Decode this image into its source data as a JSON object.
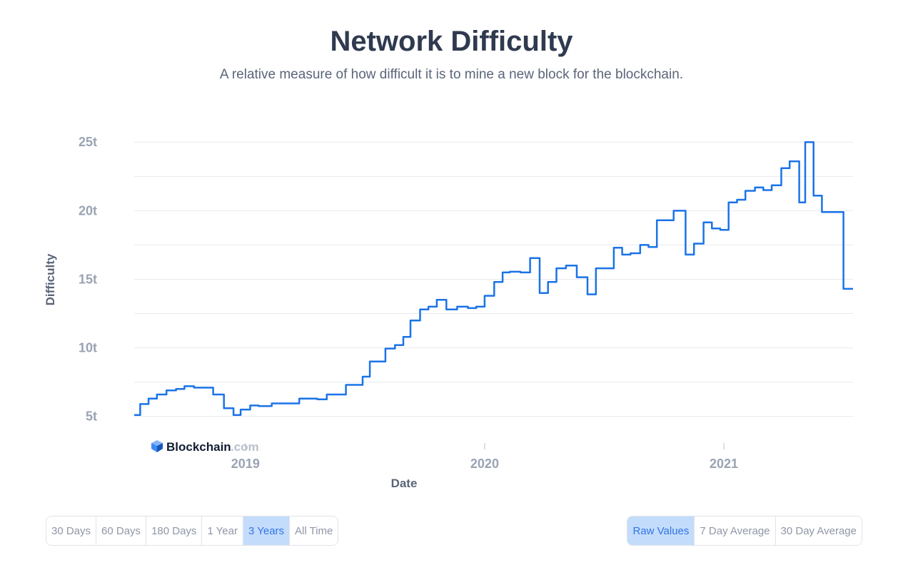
{
  "header": {
    "title": "Network Difficulty",
    "subtitle": "A relative measure of how difficult it is to mine a new block for the blockchain."
  },
  "brand": {
    "name": "Blockchain",
    "suffix": ".com"
  },
  "range_buttons": [
    {
      "label": "30 Days",
      "active": false
    },
    {
      "label": "60 Days",
      "active": false
    },
    {
      "label": "180 Days",
      "active": false
    },
    {
      "label": "1 Year",
      "active": false
    },
    {
      "label": "3 Years",
      "active": true
    },
    {
      "label": "All Time",
      "active": false
    }
  ],
  "average_buttons": [
    {
      "label": "Raw Values",
      "active": true
    },
    {
      "label": "7 Day Average",
      "active": false
    },
    {
      "label": "30 Day Average",
      "active": false
    }
  ],
  "colors": {
    "line": "#1a73e8",
    "grid": "#e6e9ee",
    "accent": "#2f76e6"
  },
  "chart_data": {
    "type": "line",
    "title": "Network Difficulty",
    "xlabel": "Date",
    "ylabel": "Difficulty",
    "x_ticks": [
      {
        "label": "2019",
        "value": 2019.0
      },
      {
        "label": "2020",
        "value": 2020.0
      },
      {
        "label": "2021",
        "value": 2021.0
      }
    ],
    "y_ticks": [
      {
        "label": "5t",
        "value": 5
      },
      {
        "label": "10t",
        "value": 10
      },
      {
        "label": "15t",
        "value": 15
      },
      {
        "label": "20t",
        "value": 20
      },
      {
        "label": "25t",
        "value": 25
      }
    ],
    "xlim": [
      2018.535,
      2021.54
    ],
    "ylim": [
      4.05,
      26.0
    ],
    "grid": true,
    "series": [
      {
        "values": [
          [
            2018.535,
            5.1
          ],
          [
            2018.56,
            5.9
          ],
          [
            2018.595,
            6.3
          ],
          [
            2018.63,
            6.6
          ],
          [
            2018.67,
            6.9
          ],
          [
            2018.71,
            7.0
          ],
          [
            2018.745,
            7.2
          ],
          [
            2018.785,
            7.1
          ],
          [
            2018.865,
            6.6
          ],
          [
            2018.91,
            5.6
          ],
          [
            2018.95,
            5.1
          ],
          [
            2018.98,
            5.5
          ],
          [
            2019.02,
            5.8
          ],
          [
            2019.055,
            5.75
          ],
          [
            2019.11,
            5.95
          ],
          [
            2019.225,
            6.3
          ],
          [
            2019.3,
            6.25
          ],
          [
            2019.34,
            6.6
          ],
          [
            2019.42,
            7.3
          ],
          [
            2019.49,
            7.9
          ],
          [
            2019.52,
            9.0
          ],
          [
            2019.585,
            9.95
          ],
          [
            2019.625,
            10.2
          ],
          [
            2019.66,
            10.8
          ],
          [
            2019.69,
            12.0
          ],
          [
            2019.73,
            12.8
          ],
          [
            2019.765,
            13.0
          ],
          [
            2019.8,
            13.5
          ],
          [
            2019.84,
            12.8
          ],
          [
            2019.885,
            13.0
          ],
          [
            2019.93,
            12.9
          ],
          [
            2019.965,
            13.0
          ],
          [
            2020.0,
            13.8
          ],
          [
            2020.04,
            14.8
          ],
          [
            2020.075,
            15.5
          ],
          [
            2020.105,
            15.55
          ],
          [
            2020.15,
            15.5
          ],
          [
            2020.19,
            16.55
          ],
          [
            2020.23,
            14.0
          ],
          [
            2020.265,
            14.8
          ],
          [
            2020.3,
            15.8
          ],
          [
            2020.34,
            16.0
          ],
          [
            2020.385,
            15.15
          ],
          [
            2020.43,
            13.9
          ],
          [
            2020.465,
            15.8
          ],
          [
            2020.54,
            17.3
          ],
          [
            2020.575,
            16.8
          ],
          [
            2020.61,
            16.9
          ],
          [
            2020.65,
            17.5
          ],
          [
            2020.685,
            17.35
          ],
          [
            2020.72,
            19.3
          ],
          [
            2020.79,
            20.0
          ],
          [
            2020.84,
            16.8
          ],
          [
            2020.875,
            17.6
          ],
          [
            2020.915,
            19.15
          ],
          [
            2020.95,
            18.7
          ],
          [
            2020.985,
            18.6
          ],
          [
            2021.02,
            20.6
          ],
          [
            2021.055,
            20.8
          ],
          [
            2021.09,
            21.45
          ],
          [
            2021.13,
            21.7
          ],
          [
            2021.165,
            21.5
          ],
          [
            2021.2,
            21.85
          ],
          [
            2021.24,
            23.1
          ],
          [
            2021.275,
            23.6
          ],
          [
            2021.315,
            20.6
          ],
          [
            2021.34,
            25.0
          ],
          [
            2021.375,
            21.1
          ],
          [
            2021.41,
            19.9
          ],
          [
            2021.5,
            14.3
          ],
          [
            2021.54,
            14.3
          ]
        ]
      }
    ]
  }
}
